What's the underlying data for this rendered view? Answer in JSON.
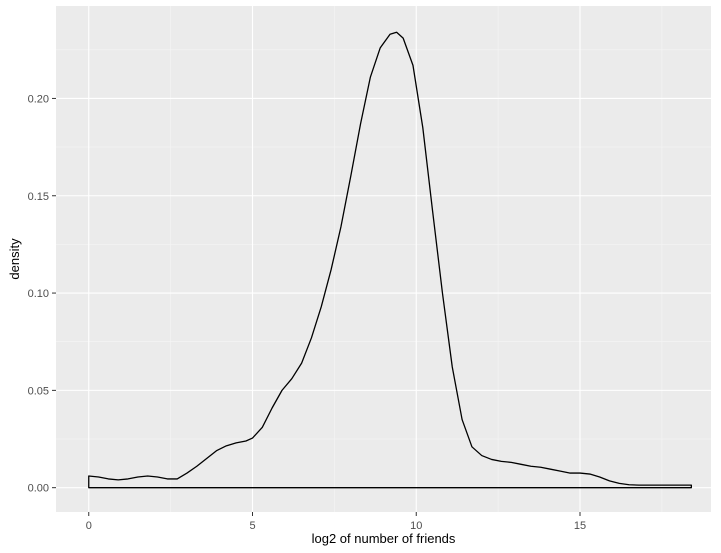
{
  "chart_data": {
    "type": "line",
    "geom": "density",
    "title": "",
    "xlabel": "log2 of number of friends",
    "ylabel": "density",
    "xlim": [
      -1,
      19
    ],
    "ylim": [
      -0.0125,
      0.2475
    ],
    "x_ticks": [
      0,
      5,
      10,
      15
    ],
    "x_tick_labels": [
      "0",
      "5",
      "10",
      "15"
    ],
    "y_ticks": [
      0,
      0.05,
      0.1,
      0.15,
      0.2
    ],
    "y_tick_labels": [
      "0.00",
      "0.05",
      "0.10",
      "0.15",
      "0.20"
    ],
    "grid": true,
    "legend": "none",
    "colors": {
      "panel_background": "#ebebeb",
      "grid_major": "#ffffff",
      "grid_minor": "#f5f5f5",
      "line": "#000000",
      "tick_label": "#4d4d4d"
    },
    "x": [
      0,
      0.3,
      0.6,
      0.9,
      1.2,
      1.5,
      1.8,
      2.1,
      2.4,
      2.7,
      3.0,
      3.3,
      3.6,
      3.9,
      4.2,
      4.5,
      4.8,
      5.0,
      5.3,
      5.6,
      5.9,
      6.2,
      6.5,
      6.8,
      7.1,
      7.4,
      7.7,
      8.0,
      8.3,
      8.6,
      8.9,
      9.2,
      9.4,
      9.6,
      9.9,
      10.2,
      10.5,
      10.8,
      11.1,
      11.4,
      11.7,
      12.0,
      12.3,
      12.6,
      12.9,
      13.2,
      13.5,
      13.8,
      14.1,
      14.4,
      14.7,
      15.0,
      15.3,
      15.6,
      15.9,
      16.2,
      16.5,
      16.8,
      17.1,
      17.4,
      17.7,
      18.0,
      18.4
    ],
    "y": [
      0.006,
      0.0055,
      0.0045,
      0.004,
      0.0045,
      0.0055,
      0.006,
      0.0055,
      0.0045,
      0.0045,
      0.0075,
      0.011,
      0.015,
      0.019,
      0.0215,
      0.023,
      0.024,
      0.0255,
      0.031,
      0.041,
      0.05,
      0.056,
      0.064,
      0.077,
      0.093,
      0.112,
      0.134,
      0.16,
      0.187,
      0.211,
      0.226,
      0.233,
      0.234,
      0.231,
      0.217,
      0.185,
      0.142,
      0.1,
      0.062,
      0.035,
      0.021,
      0.0165,
      0.0145,
      0.0135,
      0.013,
      0.012,
      0.011,
      0.0105,
      0.0095,
      0.0085,
      0.0075,
      0.0075,
      0.007,
      0.0055,
      0.0035,
      0.0022,
      0.0015,
      0.0013,
      0.0013,
      0.0013,
      0.0013,
      0.0013,
      0.0013
    ]
  }
}
